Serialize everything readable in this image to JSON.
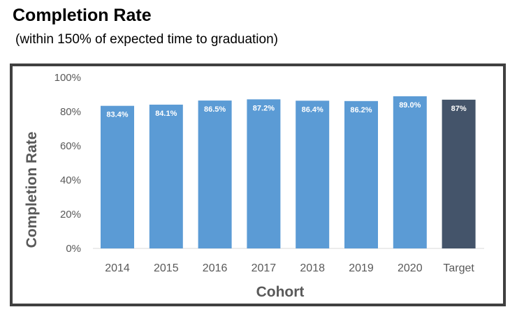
{
  "header": {
    "title": "Completion Rate",
    "subtitle": "(within 150% of expected time to graduation)"
  },
  "chart_data": {
    "type": "bar",
    "categories": [
      "2014",
      "2015",
      "2016",
      "2017",
      "2018",
      "2019",
      "2020",
      "Target"
    ],
    "values": [
      83.4,
      84.1,
      86.5,
      87.2,
      86.4,
      86.2,
      89.0,
      87
    ],
    "data_labels": [
      "83.4%",
      "84.1%",
      "86.5%",
      "87.2%",
      "86.4%",
      "86.2%",
      "89.0%",
      "87%"
    ],
    "colors": [
      "#5B9BD5",
      "#5B9BD5",
      "#5B9BD5",
      "#5B9BD5",
      "#5B9BD5",
      "#5B9BD5",
      "#5B9BD5",
      "#44546A"
    ],
    "xlabel": "Cohort",
    "ylabel": "Completion Rate",
    "ylim": [
      0,
      100
    ],
    "yticks": [
      "0%",
      "20%",
      "40%",
      "60%",
      "80%",
      "100%"
    ],
    "grid": false,
    "legend": "none"
  }
}
